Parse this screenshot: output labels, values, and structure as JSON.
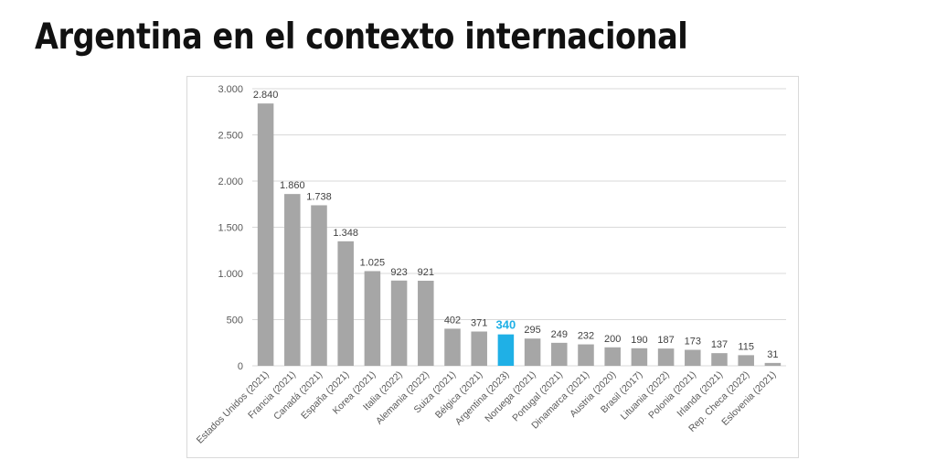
{
  "page": {
    "title": "Argentina en el contexto internacional"
  },
  "chart_data": {
    "type": "bar",
    "title": "",
    "xlabel": "",
    "ylabel": "",
    "ylim": [
      0,
      3000
    ],
    "yticks": [
      0,
      500,
      1000,
      1500,
      2000,
      2500,
      3000
    ],
    "ytick_labels": [
      "0",
      "500",
      "1.000",
      "1.500",
      "2.000",
      "2.500",
      "3.000"
    ],
    "grid": true,
    "legend": "none",
    "bar_color": "#a6a6a6",
    "highlight_color": "#1fb0e6",
    "highlight_category": "Argentina (2023)",
    "categories": [
      "Estados Unidos (2021)",
      "Francia (2021)",
      "Canadá (2021)",
      "España (2021)",
      "Korea (2021)",
      "Italia (2022)",
      "Alemania (2022)",
      "Suiza (2021)",
      "Bélgica (2021)",
      "Argentina (2023)",
      "Noruega (2021)",
      "Portugal (2021)",
      "Dinamarca (2021)",
      "Austria (2020)",
      "Brasil (2017)",
      "Lituania (2022)",
      "Polonia (2021)",
      "Irlanda (2021)",
      "Rep. Checa (2022)",
      "Eslovenia (2021)"
    ],
    "values": [
      2840,
      1860,
      1738,
      1348,
      1025,
      923,
      921,
      402,
      371,
      340,
      295,
      249,
      232,
      200,
      190,
      187,
      173,
      137,
      115,
      31
    ],
    "value_labels": [
      "2.840",
      "1.860",
      "1.738",
      "1.348",
      "1.025",
      "923",
      "921",
      "402",
      "371",
      "340",
      "295",
      "249",
      "232",
      "200",
      "190",
      "187",
      "173",
      "137",
      "115",
      "31"
    ]
  }
}
